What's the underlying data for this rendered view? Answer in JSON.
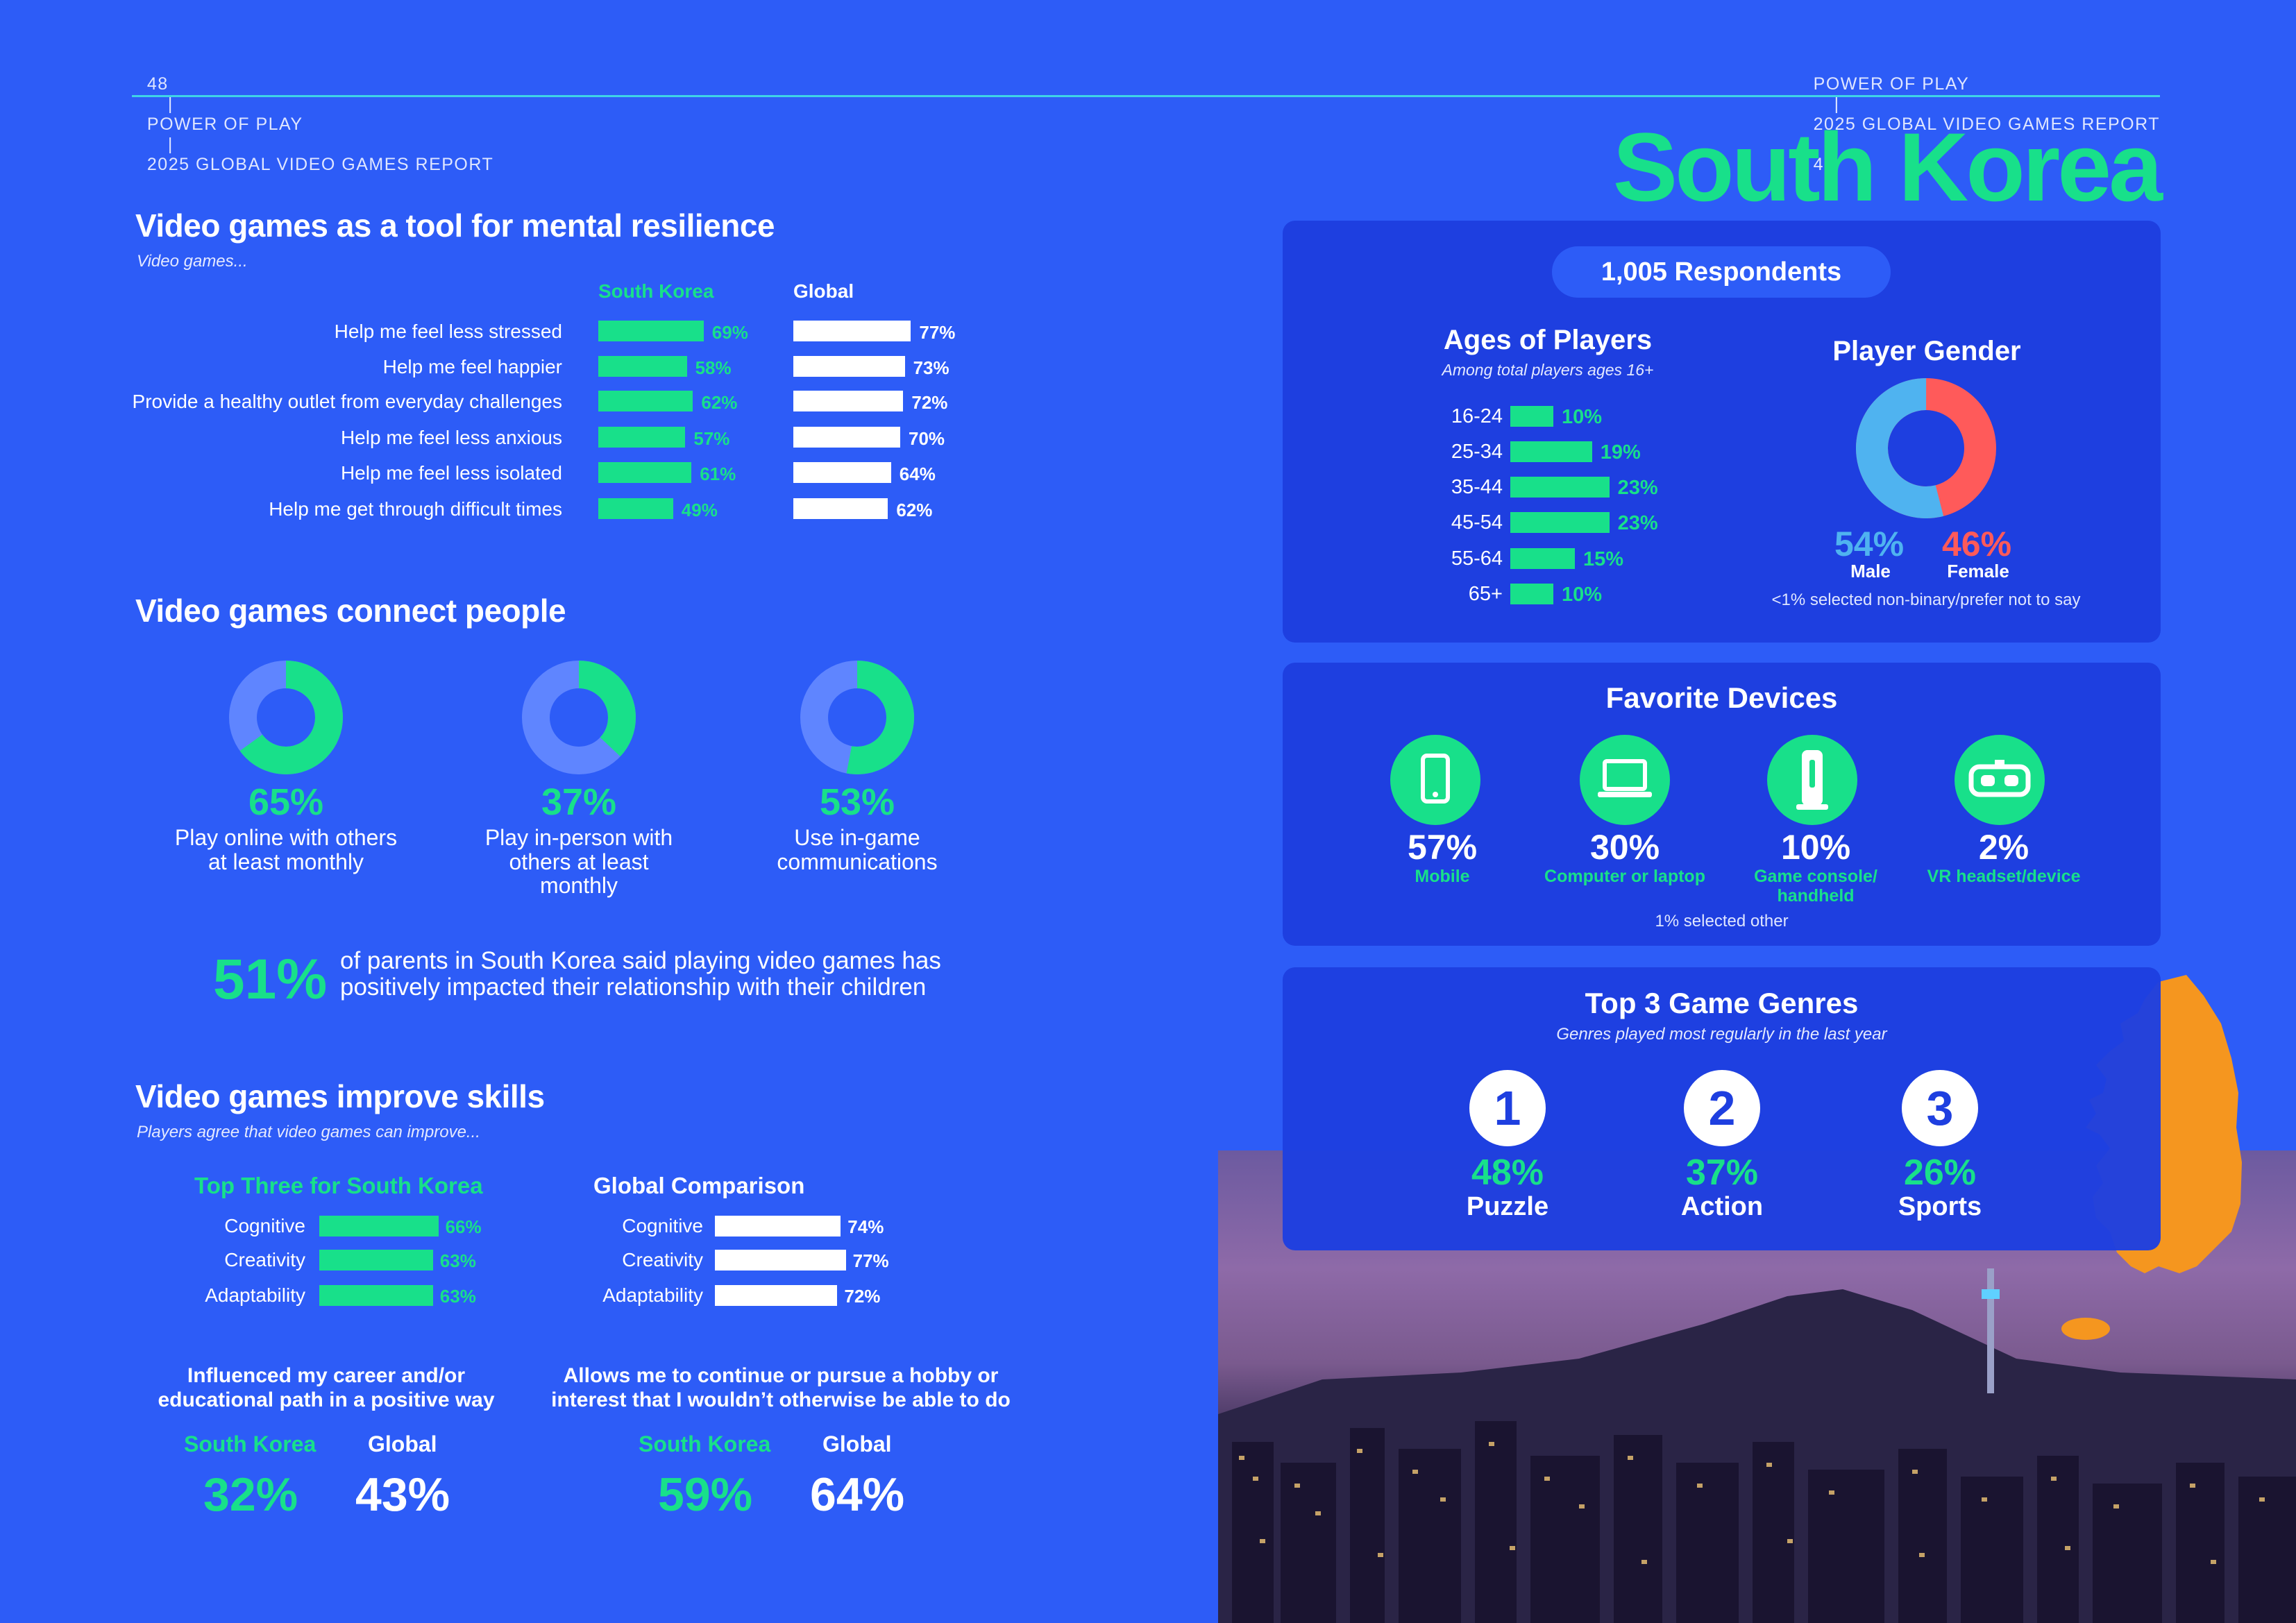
{
  "header": {
    "left_page": "48",
    "left_title": "POWER OF PLAY",
    "left_report": "2025 GLOBAL VIDEO GAMES REPORT",
    "sep": "|",
    "right_title": "POWER OF PLAY",
    "right_report": "2025 GLOBAL VIDEO GAMES REPORT",
    "right_page": "49"
  },
  "country_title": "South Korea",
  "resilience": {
    "title": "Video games as a tool for mental resilience",
    "subtitle": "Video games...",
    "col_sk": "South Korea",
    "col_global": "Global",
    "rows": [
      {
        "label": "Help me feel less stressed",
        "sk": 69,
        "sk_label": "69%",
        "global": 77,
        "global_label": "77%"
      },
      {
        "label": "Help me feel happier",
        "sk": 58,
        "sk_label": "58%",
        "global": 73,
        "global_label": "73%"
      },
      {
        "label": "Provide a healthy outlet from everyday challenges",
        "sk": 62,
        "sk_label": "62%",
        "global": 72,
        "global_label": "72%"
      },
      {
        "label": "Help me feel less anxious",
        "sk": 57,
        "sk_label": "57%",
        "global": 70,
        "global_label": "70%"
      },
      {
        "label": "Help me feel less isolated",
        "sk": 61,
        "sk_label": "61%",
        "global": 64,
        "global_label": "64%"
      },
      {
        "label": "Help me get through difficult times",
        "sk": 49,
        "sk_label": "49%",
        "global": 62,
        "global_label": "62%"
      }
    ]
  },
  "connect": {
    "title": "Video games connect people",
    "items": [
      {
        "value": 65,
        "value_label": "65%",
        "line1": "Play online with others",
        "line2": "at least monthly",
        "line3": ""
      },
      {
        "value": 37,
        "value_label": "37%",
        "line1": "Play in-person with",
        "line2": "others at least",
        "line3": "monthly"
      },
      {
        "value": 53,
        "value_label": "53%",
        "line1": "Use in-game",
        "line2": "communications",
        "line3": ""
      }
    ],
    "parents_pct": "51%",
    "parents_line1": "of parents in South Korea said playing video games has",
    "parents_line2": "positively impacted their relationship with their children"
  },
  "skills": {
    "title": "Video games improve skills",
    "subtitle": "Players agree that video games can improve...",
    "sk_heading": "Top Three for South Korea",
    "global_heading": "Global Comparison",
    "sk_rows": [
      {
        "label": "Cognitive",
        "value": 66,
        "value_label": "66%"
      },
      {
        "label": "Creativity",
        "value": 63,
        "value_label": "63%"
      },
      {
        "label": "Adaptability",
        "value": 63,
        "value_label": "63%"
      }
    ],
    "global_rows": [
      {
        "label": "Cognitive",
        "value": 74,
        "value_label": "74%"
      },
      {
        "label": "Creativity",
        "value": 77,
        "value_label": "77%"
      },
      {
        "label": "Adaptability",
        "value": 72,
        "value_label": "72%"
      }
    ],
    "career": {
      "line1": "Influenced my career and/or",
      "line2": "educational path in a positive way",
      "sk_label": "South Korea",
      "global_label": "Global",
      "sk_value": "32%",
      "global_value": "43%"
    },
    "hobby": {
      "line1": "Allows me to continue or pursue a hobby or",
      "line2": "interest that I wouldn’t otherwise be able to do",
      "sk_label": "South Korea",
      "global_label": "Global",
      "sk_value": "59%",
      "global_value": "64%"
    }
  },
  "respondents": "1,005 Respondents",
  "ages": {
    "title": "Ages of Players",
    "subtitle": "Among total players ages 16+",
    "rows": [
      {
        "label": "16-24",
        "value": 10,
        "value_label": "10%"
      },
      {
        "label": "25-34",
        "value": 19,
        "value_label": "19%"
      },
      {
        "label": "35-44",
        "value": 23,
        "value_label": "23%"
      },
      {
        "label": "45-54",
        "value": 23,
        "value_label": "23%"
      },
      {
        "label": "55-64",
        "value": 15,
        "value_label": "15%"
      },
      {
        "label": "65+",
        "value": 10,
        "value_label": "10%"
      }
    ]
  },
  "gender": {
    "title": "Player Gender",
    "male": 54,
    "male_label": "54%",
    "male_text": "Male",
    "female": 46,
    "female_label": "46%",
    "female_text": "Female",
    "male_color": "#4fb3f0",
    "female_color": "#ff5a5a",
    "note": "<1% selected non-binary/prefer not to say"
  },
  "devices": {
    "title": "Favorite Devices",
    "items": [
      {
        "icon": "mobile-icon",
        "value": "57%",
        "line1": "Mobile",
        "line2": ""
      },
      {
        "icon": "laptop-icon",
        "value": "30%",
        "line1": "Computer or laptop",
        "line2": ""
      },
      {
        "icon": "console-icon",
        "value": "10%",
        "line1": "Game console/",
        "line2": "handheld"
      },
      {
        "icon": "vr-headset-icon",
        "value": "2%",
        "line1": "VR headset/device",
        "line2": ""
      }
    ],
    "note": "1% selected other"
  },
  "genres": {
    "title": "Top 3 Game Genres",
    "subtitle": "Genres played most regularly in the last year",
    "items": [
      {
        "rank": "1",
        "value": "48%",
        "label": "Puzzle"
      },
      {
        "rank": "2",
        "value": "37%",
        "label": "Action"
      },
      {
        "rank": "3",
        "value": "26%",
        "label": "Sports"
      }
    ]
  },
  "colors": {
    "background": "#2d5cf7",
    "panel": "#1e3fe0",
    "accent_green": "#18e08a",
    "map_orange": "#f5961f",
    "rule": "#3fd3e6"
  }
}
